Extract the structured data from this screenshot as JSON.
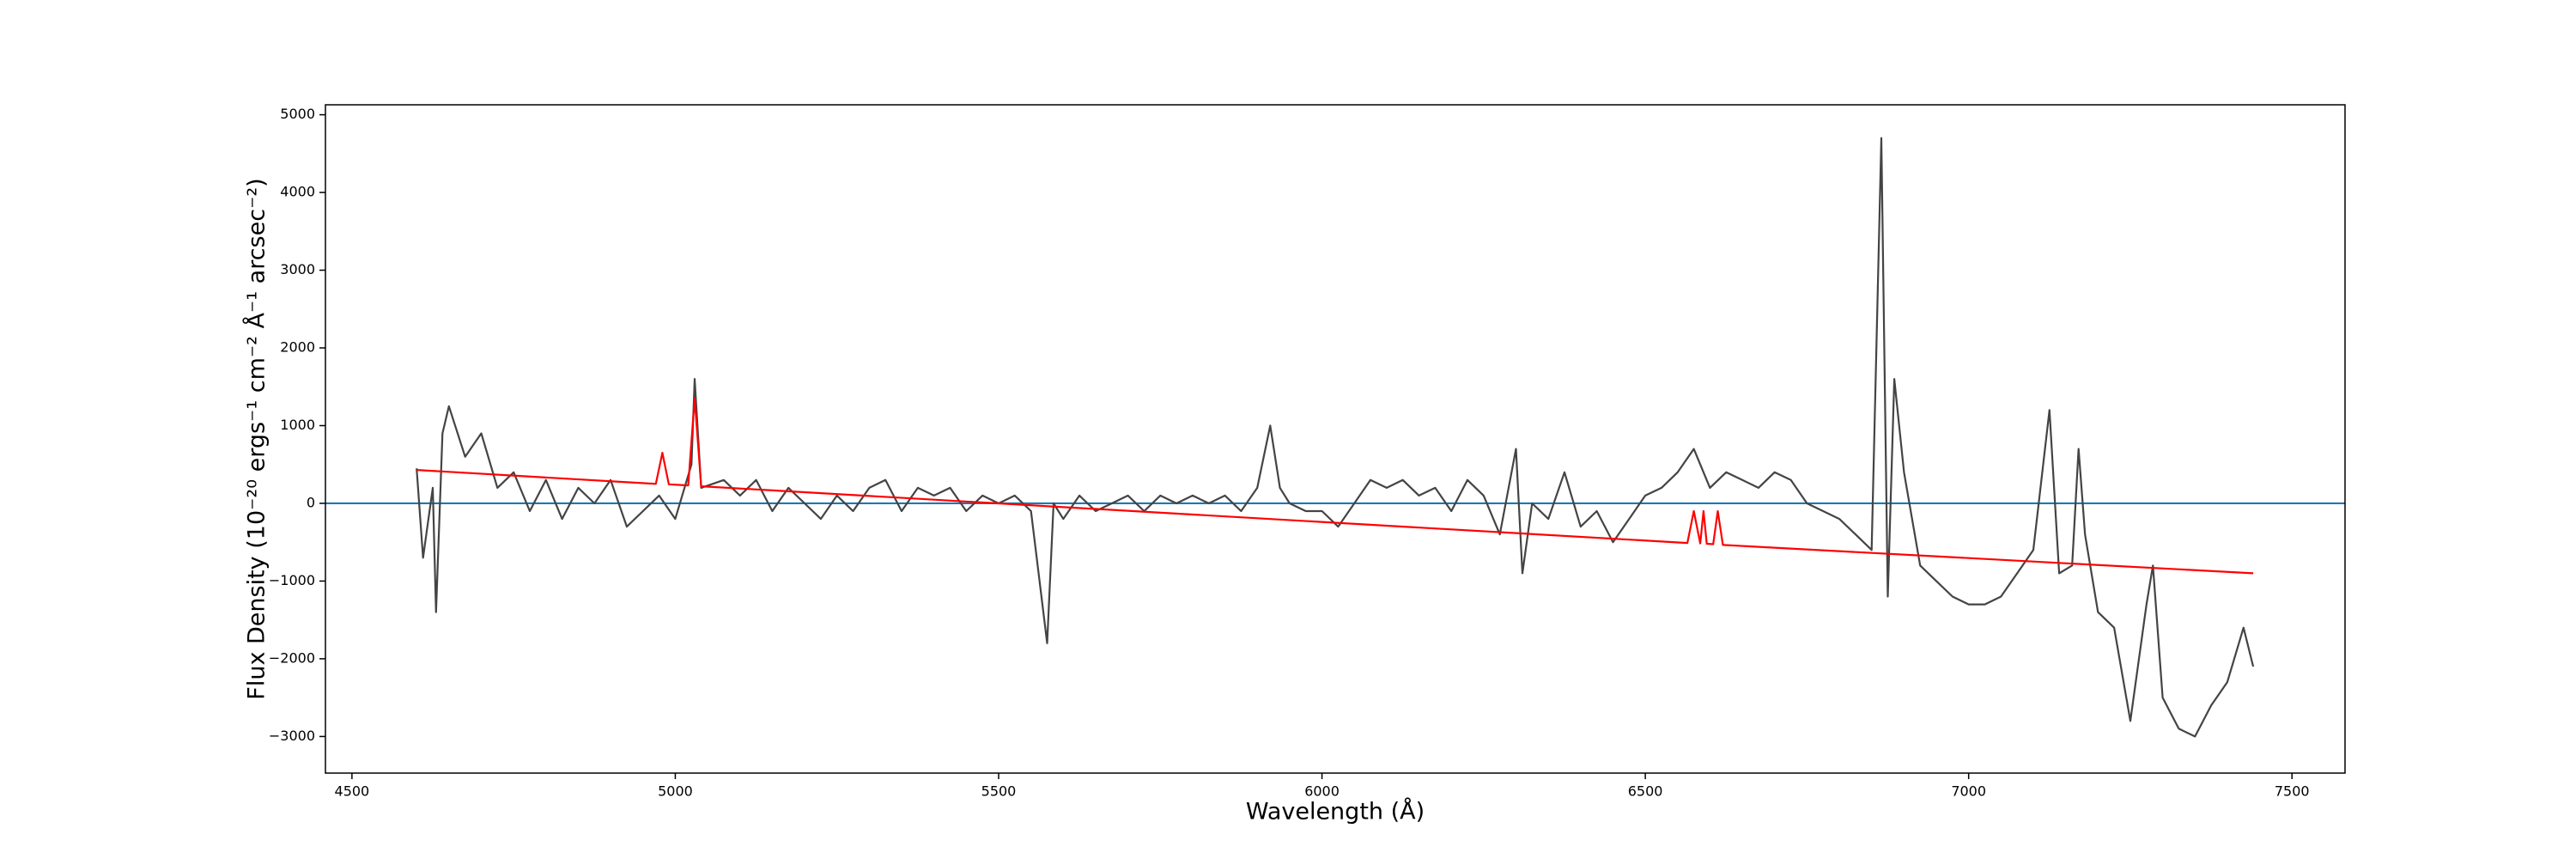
{
  "chart_data": {
    "type": "line",
    "xlabel": "Wavelength (Å)",
    "ylabel": "Flux Density (10⁻²⁰ ergs⁻¹ cm⁻² Å⁻¹ arcsec⁻²)",
    "xlim": [
      4459,
      7582
    ],
    "ylim": [
      -3471,
      5128
    ],
    "xticks": [
      4500,
      5000,
      5500,
      6000,
      6500,
      7000,
      7500
    ],
    "yticks": [
      {
        "value": -3000,
        "label": "−3000"
      },
      {
        "value": -2000,
        "label": "−2000"
      },
      {
        "value": -1000,
        "label": "−1000"
      },
      0,
      1000,
      2000,
      3000,
      4000,
      5000
    ],
    "hline": 0,
    "hline_color": "#1f77b4",
    "series": [
      {
        "color": "#444444",
        "x": [
          4600,
          4610,
          4625,
          4630,
          4640,
          4650,
          4675,
          4700,
          4725,
          4750,
          4775,
          4800,
          4825,
          4850,
          4875,
          4900,
          4925,
          4950,
          4975,
          5000,
          5025,
          5030,
          5040,
          5075,
          5100,
          5125,
          5150,
          5175,
          5200,
          5225,
          5250,
          5275,
          5300,
          5325,
          5350,
          5375,
          5400,
          5425,
          5450,
          5475,
          5500,
          5525,
          5550,
          5575,
          5585,
          5600,
          5625,
          5650,
          5675,
          5700,
          5725,
          5750,
          5775,
          5800,
          5825,
          5850,
          5875,
          5900,
          5920,
          5935,
          5950,
          5975,
          6000,
          6025,
          6050,
          6075,
          6100,
          6125,
          6150,
          6175,
          6200,
          6225,
          6250,
          6275,
          6300,
          6310,
          6325,
          6350,
          6375,
          6400,
          6425,
          6450,
          6475,
          6500,
          6525,
          6550,
          6575,
          6600,
          6625,
          6650,
          6675,
          6700,
          6725,
          6750,
          6775,
          6800,
          6825,
          6850,
          6865,
          6875,
          6885,
          6900,
          6925,
          6950,
          6975,
          7000,
          7025,
          7050,
          7075,
          7100,
          7125,
          7140,
          7160,
          7170,
          7180,
          7200,
          7225,
          7250,
          7275,
          7285,
          7300,
          7325,
          7350,
          7375,
          7400,
          7425,
          7440
        ],
        "values": [
          450,
          -700,
          200,
          -1400,
          900,
          1250,
          600,
          900,
          200,
          400,
          -100,
          300,
          -200,
          200,
          0,
          300,
          -300,
          -100,
          100,
          -200,
          500,
          1600,
          200,
          300,
          100,
          300,
          -100,
          200,
          0,
          -200,
          100,
          -100,
          200,
          300,
          -100,
          200,
          100,
          200,
          -100,
          100,
          0,
          100,
          -100,
          -1800,
          0,
          -200,
          100,
          -100,
          0,
          100,
          -100,
          100,
          0,
          100,
          0,
          100,
          -100,
          200,
          1000,
          200,
          0,
          -100,
          -100,
          -300,
          0,
          300,
          200,
          300,
          100,
          200,
          -100,
          300,
          100,
          -400,
          700,
          -900,
          0,
          -200,
          400,
          -300,
          -100,
          -500,
          -200,
          100,
          200,
          400,
          700,
          200,
          400,
          300,
          200,
          400,
          300,
          0,
          -100,
          -200,
          -400,
          -600,
          4700,
          -1200,
          1600,
          400,
          -800,
          -1000,
          -1200,
          -1300,
          -1300,
          -1200,
          -900,
          -600,
          1200,
          -900,
          -800,
          700,
          -400,
          -1400,
          -1600,
          -2800,
          -1300,
          -800,
          -2500,
          -2900,
          -3000,
          -2600,
          -2300,
          -1600,
          -2100
        ]
      },
      {
        "color": "#ff0000",
        "x": [
          4600,
          4970,
          4980,
          4990,
          5020,
          5030,
          5040,
          6565,
          6575,
          6585,
          6590,
          6595,
          6605,
          6612,
          6620,
          7440
        ],
        "values": [
          430,
          250,
          650,
          245,
          230,
          1350,
          220,
          -510,
          -100,
          -515,
          -100,
          -520,
          -525,
          -100,
          -535,
          -900
        ]
      }
    ]
  }
}
